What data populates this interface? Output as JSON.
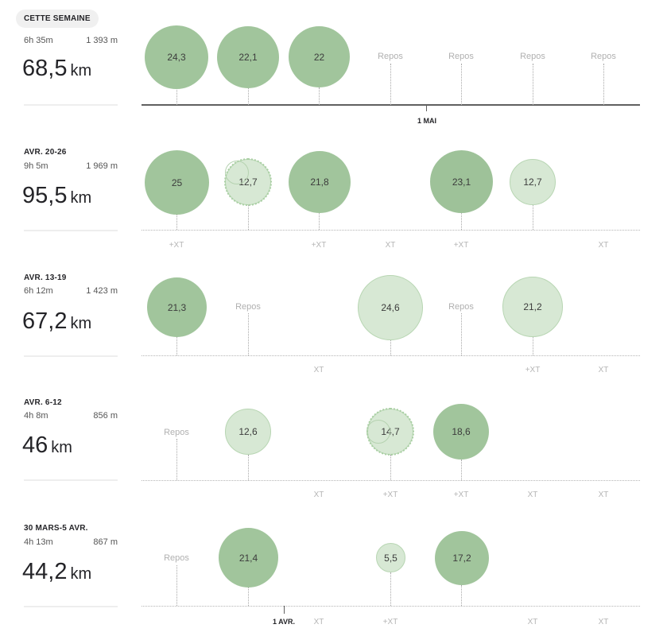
{
  "weeks": [
    {
      "label": "CETTE SEMAINE",
      "time": "6h 35m",
      "elevation": "1 393 m",
      "distance_value": "68,5",
      "distance_unit": "km",
      "days": [
        {
          "type": "run",
          "value": "24,3"
        },
        {
          "type": "run",
          "value": "22,1"
        },
        {
          "type": "run",
          "value": "22"
        },
        {
          "type": "rest",
          "label": "Repos"
        },
        {
          "type": "rest",
          "label": "Repos"
        },
        {
          "type": "rest",
          "label": "Repos"
        },
        {
          "type": "rest",
          "label": "Repos"
        }
      ],
      "date_marker": "1 MAI"
    },
    {
      "label": "AVR. 20-26",
      "time": "9h 5m",
      "elevation": "1 969 m",
      "distance_value": "95,5",
      "distance_unit": "km",
      "days": [
        {
          "type": "run",
          "value": "25",
          "xt": "+XT"
        },
        {
          "type": "run",
          "value": "12,7"
        },
        {
          "type": "run",
          "value": "21,8",
          "xt": "+XT"
        },
        {
          "type": "xt_only",
          "xt": "XT"
        },
        {
          "type": "run",
          "value": "23,1",
          "xt": "+XT"
        },
        {
          "type": "run",
          "value": "12,7"
        },
        {
          "type": "xt_only",
          "xt": "XT"
        }
      ]
    },
    {
      "label": "AVR. 13-19",
      "time": "6h 12m",
      "elevation": "1 423 m",
      "distance_value": "67,2",
      "distance_unit": "km",
      "days": [
        {
          "type": "run",
          "value": "21,3"
        },
        {
          "type": "rest",
          "label": "Repos"
        },
        {
          "type": "xt_only",
          "xt": "XT"
        },
        {
          "type": "run",
          "value": "24,6"
        },
        {
          "type": "rest",
          "label": "Repos"
        },
        {
          "type": "run",
          "value": "21,2",
          "xt": "+XT"
        },
        {
          "type": "xt_only",
          "xt": "XT"
        }
      ]
    },
    {
      "label": "AVR. 6-12",
      "time": "4h 8m",
      "elevation": "856 m",
      "distance_value": "46",
      "distance_unit": "km",
      "days": [
        {
          "type": "rest",
          "label": "Repos"
        },
        {
          "type": "run",
          "value": "12,6"
        },
        {
          "type": "xt_only",
          "xt": "XT"
        },
        {
          "type": "run",
          "value": "14,7",
          "xt": "+XT"
        },
        {
          "type": "run",
          "value": "18,6",
          "xt": "+XT"
        },
        {
          "type": "xt_only",
          "xt": "XT"
        },
        {
          "type": "xt_only",
          "xt": "XT"
        }
      ]
    },
    {
      "label": "30 MARS-5 AVR.",
      "time": "4h 13m",
      "elevation": "867 m",
      "distance_value": "44,2",
      "distance_unit": "km",
      "days": [
        {
          "type": "rest",
          "label": "Repos"
        },
        {
          "type": "run",
          "value": "21,4"
        },
        {
          "type": "xt_only",
          "xt": "XT"
        },
        {
          "type": "run",
          "value": "5,5",
          "xt": "+XT"
        },
        {
          "type": "run",
          "value": "17,2"
        },
        {
          "type": "xt_only",
          "xt": "XT"
        },
        {
          "type": "xt_only",
          "xt": "XT"
        }
      ],
      "date_marker": "1 AVR."
    }
  ],
  "colors": {
    "run_dark": "#a1c59c",
    "run_light": "#d7e8d4",
    "text": "#242428",
    "muted": "#b0b0b0"
  }
}
